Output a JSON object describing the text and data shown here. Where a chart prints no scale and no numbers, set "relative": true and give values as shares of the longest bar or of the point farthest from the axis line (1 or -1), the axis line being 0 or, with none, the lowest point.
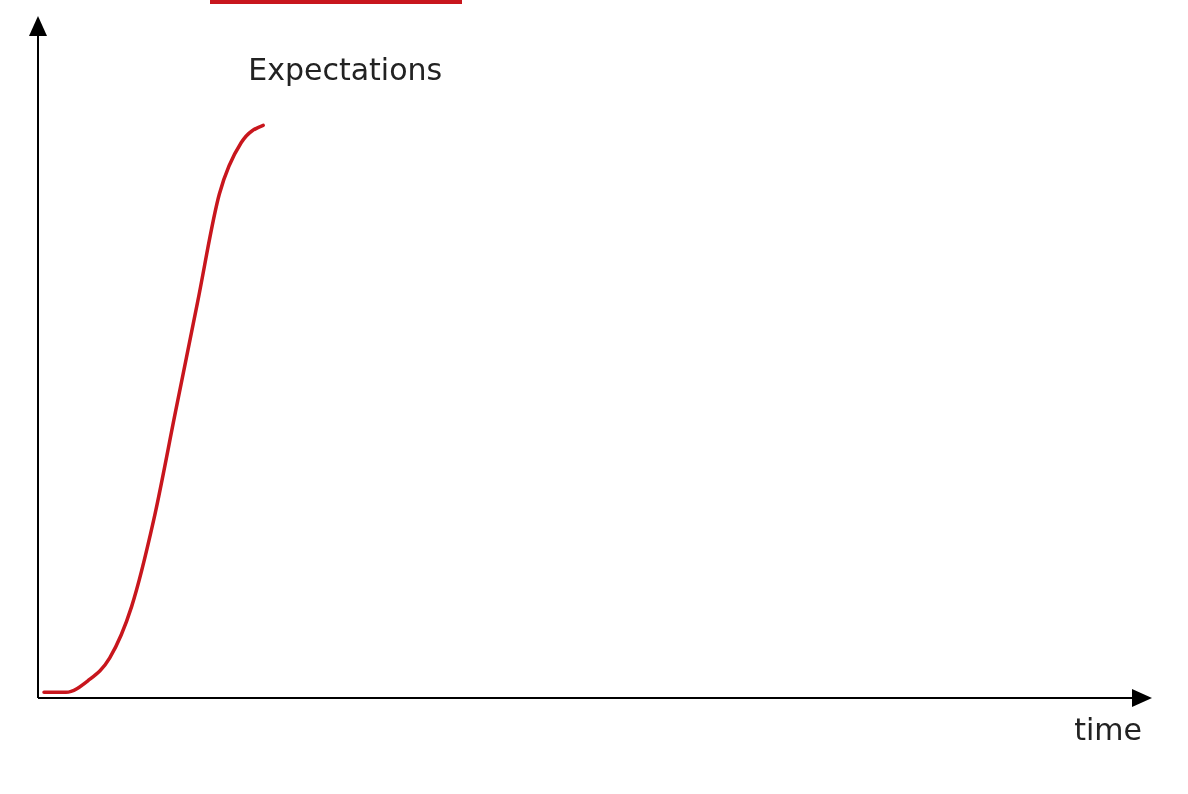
{
  "chart_data": {
    "type": "line",
    "relative": true,
    "xlabel": "time",
    "categories": [
      null,
      null,
      null,
      null,
      null,
      null,
      null,
      null,
      null,
      null,
      null,
      null,
      null,
      null,
      null,
      null,
      null,
      null,
      null,
      null,
      null,
      null,
      null,
      null,
      null,
      null,
      null,
      null,
      null,
      null,
      null,
      null,
      null,
      null,
      null,
      null,
      null,
      null,
      null,
      null,
      null,
      null,
      null,
      null,
      null,
      null,
      null,
      null,
      null,
      null,
      null
    ],
    "series": [
      {
        "name": "Expectations",
        "color": "#c8161d",
        "values": [
          0.01,
          0.01,
          0.03,
          0.07,
          0.16,
          0.31,
          0.5,
          0.69,
          0.88,
          0.97,
          1,
          null,
          null,
          null,
          null,
          null,
          null,
          null,
          null,
          null,
          null,
          null,
          null,
          null,
          null,
          null,
          null,
          null,
          null,
          null,
          null,
          null,
          null,
          null,
          null,
          null,
          null,
          null,
          null,
          null,
          null,
          null,
          null,
          null,
          null,
          null,
          null,
          null,
          null,
          null,
          null
        ]
      }
    ],
    "marker": "none",
    "line_style": "solid",
    "grid": false,
    "legend": false
  }
}
